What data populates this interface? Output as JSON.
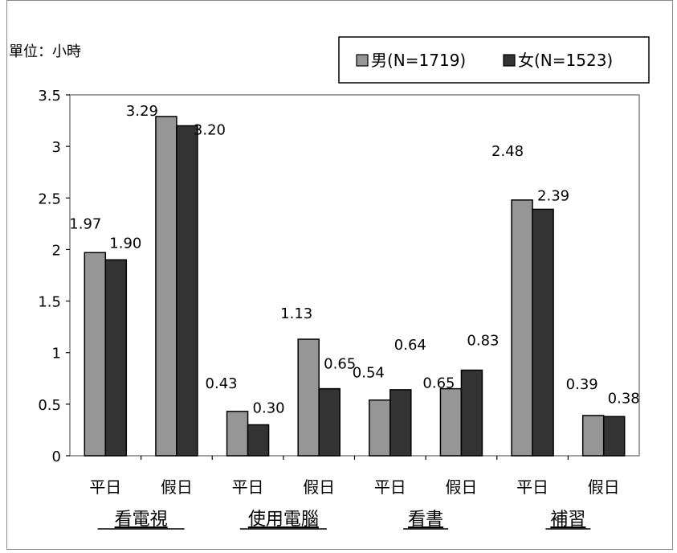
{
  "chart_data": {
    "type": "bar",
    "unit_label": "單位：小時",
    "categories": [
      "平日",
      "假日",
      "平日",
      "假日",
      "平日",
      "假日",
      "平日",
      "假日"
    ],
    "groups": [
      "看電視",
      "使用電腦",
      "看書",
      "補習"
    ],
    "series": [
      {
        "name": "男(N=1719)",
        "color": "#969696",
        "values": [
          1.97,
          3.29,
          0.43,
          1.13,
          0.54,
          0.65,
          2.48,
          0.39
        ],
        "labels": [
          "1.97",
          "3.29",
          "0.43",
          "1.13",
          "0.54",
          "0.65",
          "2.48",
          "0.39"
        ]
      },
      {
        "name": "女(N=1523)",
        "color": "#333333",
        "values": [
          1.9,
          3.2,
          0.3,
          0.65,
          0.64,
          0.83,
          2.39,
          0.38
        ],
        "labels": [
          "1.90",
          "3.20",
          "0.30",
          "0.65",
          "0.64",
          "0.83",
          "2.39",
          "0.38"
        ]
      }
    ],
    "ylim": [
      0,
      3.5
    ],
    "yticks": [
      "0",
      "0.5",
      "1",
      "1.5",
      "2",
      "2.5",
      "3",
      "3.5"
    ],
    "grid": false,
    "legend": "top-right"
  }
}
